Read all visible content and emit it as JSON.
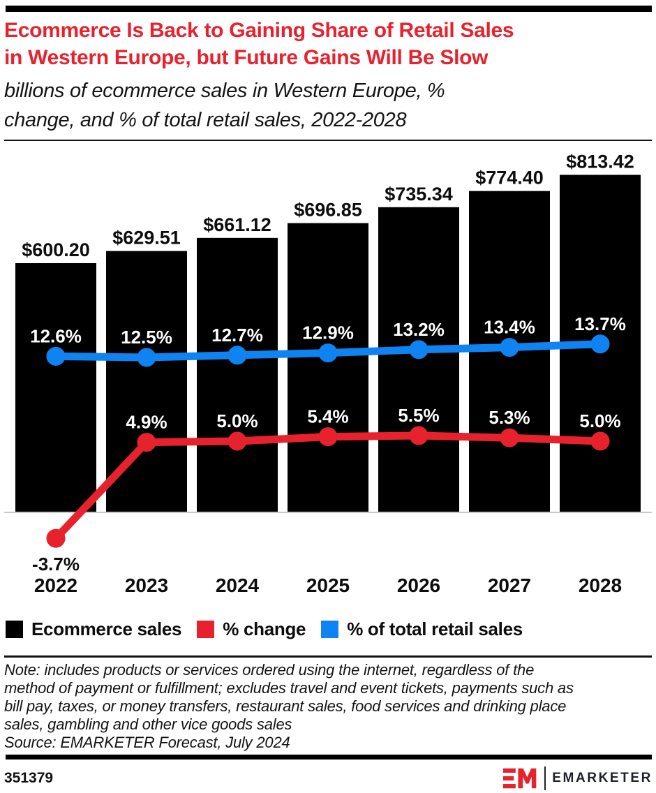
{
  "header": {
    "title_lines": [
      "Ecommerce Is Back to Gaining Share of Retail Sales",
      "in Western Europe, but Future Gains Will Be Slow"
    ],
    "title": "Ecommerce Is Back to Gaining Share of Retail Sales in Western Europe, but Future Gains Will Be Slow",
    "subtitle_lines": [
      "billions of ecommerce sales in Western Europe, %",
      "change, and % of total retail sales, 2022-2028"
    ],
    "subtitle": "billions of ecommerce sales in Western Europe, % change, and % of total retail sales, 2022-2028"
  },
  "colors": {
    "title_red": "#e8222d",
    "line_red": "#e8222d",
    "line_blue": "#0e83f1",
    "bar_black": "#000000",
    "axis_gray": "#c9c9c9"
  },
  "chart_data": {
    "type": "combo-bar-line",
    "categories": [
      "2022",
      "2023",
      "2024",
      "2025",
      "2026",
      "2027",
      "2028"
    ],
    "series": [
      {
        "name": "Ecommerce sales",
        "type": "bar",
        "color": "#000000",
        "unit": "billions of $",
        "values": [
          600.2,
          629.51,
          661.12,
          696.85,
          735.34,
          774.4,
          813.42
        ],
        "labels": [
          "$600.20",
          "$629.51",
          "$661.12",
          "$696.85",
          "$735.34",
          "$774.40",
          "$813.42"
        ]
      },
      {
        "name": "% change",
        "type": "line",
        "color": "#e8222d",
        "values": [
          -3.7,
          4.9,
          5.0,
          5.4,
          5.5,
          5.3,
          5.0
        ],
        "labels": [
          "-3.7%",
          "4.9%",
          "5.0%",
          "5.4%",
          "5.5%",
          "5.3%",
          "5.0%"
        ]
      },
      {
        "name": "% of total retail sales",
        "type": "line",
        "color": "#0e83f1",
        "values": [
          12.6,
          12.5,
          12.7,
          12.9,
          13.2,
          13.4,
          13.7
        ],
        "labels": [
          "12.6%",
          "12.5%",
          "12.7%",
          "12.9%",
          "13.2%",
          "13.4%",
          "13.7%"
        ]
      }
    ],
    "gridlines": false,
    "legend_position": "bottom",
    "baseline_value": 0
  },
  "legend": {
    "items": [
      {
        "label": "Ecommerce sales",
        "color": "#000000"
      },
      {
        "label": "% change",
        "color": "#e8222d"
      },
      {
        "label": "% of total retail sales",
        "color": "#0e83f1"
      }
    ]
  },
  "footnote": {
    "note_lines": [
      "Note: includes products or services ordered using the internet, regardless of the",
      "method of payment or fulfillment; excludes travel and event tickets, payments such as",
      "bill pay, taxes, or money transfers, restaurant sales, food services and drinking place",
      "sales, gambling and other vice goods sales"
    ],
    "note": "Note: includes products or services ordered using the internet, regardless of the method of payment or fulfillment; excludes travel and event tickets, payments such as bill pay, taxes, or money transfers, restaurant sales, food services and drinking place sales, gambling and other vice goods sales",
    "source": "Source: EMARKETER Forecast, July 2024"
  },
  "footer": {
    "chart_id": "351379",
    "brand": "EMARKETER"
  }
}
